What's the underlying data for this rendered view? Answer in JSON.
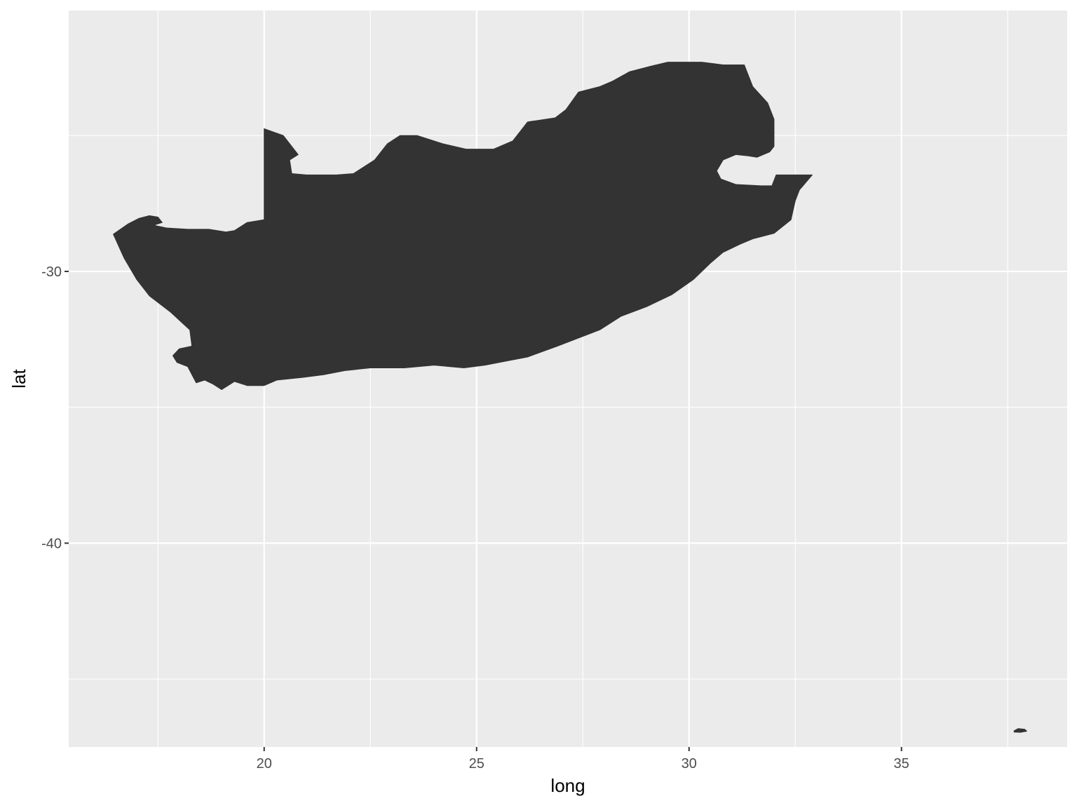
{
  "chart_data": {
    "type": "map",
    "xlabel": "long",
    "ylabel": "lat",
    "xlim": [
      15.4,
      38.9
    ],
    "ylim": [
      -47.5,
      -20.4
    ],
    "x_ticks": [
      20,
      25,
      30,
      35
    ],
    "x_ticklabels": [
      "20",
      "25",
      "30",
      "35"
    ],
    "y_ticks": [
      -30,
      -40
    ],
    "y_ticklabels": [
      "-30",
      "-40"
    ],
    "x_minor": [
      17.5,
      22.5,
      27.5,
      32.5,
      37.5
    ],
    "y_minor": [
      -25,
      -35,
      -45
    ],
    "grid": true,
    "colors": {
      "panel_background": "#ebebeb",
      "grid_line": "#ffffff",
      "fill": "#333333",
      "tick_label": "#4d4d4d",
      "axis_title": "#000000"
    },
    "polygons": [
      {
        "name": "mainland",
        "coords": [
          [
            16.45,
            -28.63
          ],
          [
            16.8,
            -28.25
          ],
          [
            17.05,
            -28.05
          ],
          [
            17.3,
            -27.95
          ],
          [
            17.5,
            -28.0
          ],
          [
            17.6,
            -28.2
          ],
          [
            17.4,
            -28.3
          ],
          [
            17.7,
            -28.4
          ],
          [
            18.2,
            -28.45
          ],
          [
            18.7,
            -28.45
          ],
          [
            19.1,
            -28.55
          ],
          [
            19.3,
            -28.5
          ],
          [
            19.6,
            -28.2
          ],
          [
            20.0,
            -28.1
          ],
          [
            20.0,
            -24.75
          ],
          [
            20.45,
            -25.0
          ],
          [
            20.8,
            -25.7
          ],
          [
            20.6,
            -25.9
          ],
          [
            20.65,
            -26.4
          ],
          [
            21.0,
            -26.45
          ],
          [
            21.7,
            -26.45
          ],
          [
            22.1,
            -26.4
          ],
          [
            22.6,
            -25.9
          ],
          [
            22.9,
            -25.3
          ],
          [
            23.2,
            -25.0
          ],
          [
            23.6,
            -25.0
          ],
          [
            24.2,
            -25.3
          ],
          [
            24.75,
            -25.5
          ],
          [
            25.4,
            -25.5
          ],
          [
            25.85,
            -25.2
          ],
          [
            26.0,
            -24.9
          ],
          [
            26.2,
            -24.5
          ],
          [
            26.85,
            -24.35
          ],
          [
            27.1,
            -24.05
          ],
          [
            27.4,
            -23.4
          ],
          [
            27.9,
            -23.2
          ],
          [
            28.2,
            -23.0
          ],
          [
            28.6,
            -22.65
          ],
          [
            29.1,
            -22.45
          ],
          [
            29.5,
            -22.3
          ],
          [
            30.3,
            -22.3
          ],
          [
            30.8,
            -22.4
          ],
          [
            31.3,
            -22.4
          ],
          [
            31.5,
            -23.2
          ],
          [
            31.85,
            -23.8
          ],
          [
            32.0,
            -24.4
          ],
          [
            32.0,
            -25.4
          ],
          [
            31.9,
            -25.6
          ],
          [
            31.6,
            -25.8
          ],
          [
            31.4,
            -25.75
          ],
          [
            31.1,
            -25.7
          ],
          [
            30.8,
            -25.9
          ],
          [
            30.65,
            -26.3
          ],
          [
            30.75,
            -26.6
          ],
          [
            31.1,
            -26.8
          ],
          [
            31.7,
            -26.85
          ],
          [
            31.95,
            -26.85
          ],
          [
            32.05,
            -26.45
          ],
          [
            32.9,
            -26.45
          ],
          [
            32.6,
            -27.0
          ],
          [
            32.5,
            -27.4
          ],
          [
            32.4,
            -28.1
          ],
          [
            32.0,
            -28.6
          ],
          [
            31.5,
            -28.8
          ],
          [
            31.2,
            -29.0
          ],
          [
            30.8,
            -29.3
          ],
          [
            30.5,
            -29.7
          ],
          [
            30.1,
            -30.3
          ],
          [
            29.6,
            -30.85
          ],
          [
            29.0,
            -31.3
          ],
          [
            28.4,
            -31.65
          ],
          [
            27.9,
            -32.15
          ],
          [
            27.4,
            -32.45
          ],
          [
            26.9,
            -32.75
          ],
          [
            26.2,
            -33.15
          ],
          [
            25.7,
            -33.3
          ],
          [
            25.2,
            -33.45
          ],
          [
            24.7,
            -33.55
          ],
          [
            24.0,
            -33.45
          ],
          [
            23.3,
            -33.55
          ],
          [
            22.5,
            -33.55
          ],
          [
            21.9,
            -33.65
          ],
          [
            21.4,
            -33.8
          ],
          [
            20.9,
            -33.9
          ],
          [
            20.3,
            -34.0
          ],
          [
            20.0,
            -34.2
          ],
          [
            19.6,
            -34.2
          ],
          [
            19.3,
            -34.05
          ],
          [
            19.0,
            -34.35
          ],
          [
            18.8,
            -34.15
          ],
          [
            18.6,
            -34.0
          ],
          [
            18.4,
            -34.1
          ],
          [
            18.3,
            -33.8
          ],
          [
            18.2,
            -33.5
          ],
          [
            17.95,
            -33.35
          ],
          [
            17.85,
            -33.1
          ],
          [
            18.0,
            -32.85
          ],
          [
            18.3,
            -32.75
          ],
          [
            18.25,
            -32.15
          ],
          [
            17.8,
            -31.5
          ],
          [
            17.3,
            -30.9
          ],
          [
            17.0,
            -30.3
          ],
          [
            16.7,
            -29.5
          ],
          [
            16.45,
            -28.63
          ]
        ]
      },
      {
        "name": "island",
        "coords": [
          [
            37.65,
            -46.9
          ],
          [
            37.75,
            -46.82
          ],
          [
            37.9,
            -46.85
          ],
          [
            37.95,
            -46.92
          ],
          [
            37.8,
            -46.96
          ],
          [
            37.65,
            -46.95
          ],
          [
            37.65,
            -46.9
          ]
        ]
      }
    ]
  }
}
